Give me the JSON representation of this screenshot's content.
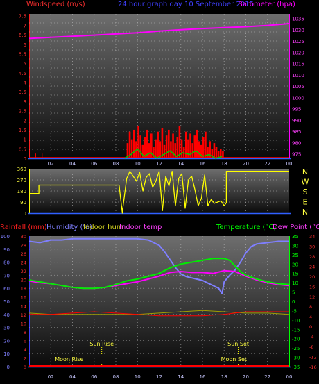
{
  "header": {
    "windspeed_label": "Windspeed (m/s)",
    "title": "24 hour graph day  10 September 2015",
    "barometer_label": "Barometer (hpa)"
  },
  "legend": {
    "rainfall": "Rainfall (mm)",
    "humidity": "Humidity (%)",
    "indoor_hum": "Indoor hum",
    "indoor_temp": "Indoor temp",
    "temperature": "Temperature (°C)",
    "dew_point": "Dew Point (°C)"
  },
  "compass": [
    "N",
    "W",
    "S",
    "E",
    "N"
  ],
  "astro": {
    "sun_rise": "Sun Rise",
    "sun_set": "Sun Set",
    "moon_rise": "Moon Rise",
    "moon_set": "Moon Set"
  },
  "colors": {
    "wind": "#ff0000",
    "gust_bar": "#ff0000",
    "wind_avg": "#00cc00",
    "barometer": "#ff00ff",
    "direction": "#ffff00",
    "humidity": "#7f7fff",
    "temperature": "#00ee00",
    "dew_point": "#ff00ff",
    "indoor_hum": "#a0a000",
    "indoor_temp": "#ff0000",
    "rainfall": "#ff0000",
    "astro": "#ffff00"
  },
  "chart_data": [
    {
      "type": "line",
      "id": "wind_baro",
      "x_ticks": [
        "02",
        "04",
        "06",
        "08",
        "10",
        "12",
        "14",
        "16",
        "18",
        "20",
        "22",
        "00"
      ],
      "xlim": [
        0,
        24
      ],
      "left_axis": {
        "label": "Windspeed (m/s)",
        "ticks": [
          "0",
          "0.5",
          "1",
          "1.5",
          "2",
          "2.5",
          "3",
          "3.5",
          "4",
          "4.5",
          "5",
          "5.5",
          "6",
          "6.5",
          "7",
          "7.5"
        ],
        "ylim": [
          0,
          7.6
        ]
      },
      "right_axis": {
        "label": "Barometer (hpa)",
        "ticks": [
          "975",
          "980",
          "985",
          "990",
          "995",
          "1000",
          "1005",
          "1010",
          "1015",
          "1020",
          "1025",
          "1030",
          "1035"
        ],
        "ylim": [
          973,
          1037
        ]
      },
      "series": [
        {
          "name": "Barometer (hpa)",
          "x": [
            0,
            2,
            4,
            6,
            8,
            10,
            12,
            14,
            16,
            18,
            20,
            22,
            24
          ],
          "y": [
            1026.1,
            1026.6,
            1027.1,
            1027.6,
            1028.1,
            1028.6,
            1029.4,
            1030.0,
            1030.5,
            1030.9,
            1031.3,
            1031.9,
            1032.7
          ]
        }
      ],
      "gust_bars": {
        "x": [
          9.0,
          9.2,
          9.4,
          9.6,
          9.8,
          10.0,
          10.2,
          10.4,
          10.6,
          10.8,
          11.0,
          11.2,
          11.4,
          11.6,
          11.8,
          12.0,
          12.2,
          12.4,
          12.6,
          12.8,
          13.0,
          13.2,
          13.4,
          13.6,
          13.8,
          14.0,
          14.2,
          14.4,
          14.6,
          14.8,
          15.0,
          15.2,
          15.4,
          15.6,
          15.8,
          16.0,
          16.2,
          16.4,
          16.6,
          16.8,
          17.0,
          17.2,
          17.4,
          17.6,
          17.8
        ],
        "y": [
          0.8,
          1.4,
          1.0,
          1.5,
          0.9,
          1.7,
          1.2,
          0.7,
          1.1,
          1.5,
          0.8,
          1.3,
          0.6,
          1.0,
          1.4,
          0.9,
          1.6,
          0.7,
          1.2,
          1.5,
          0.9,
          1.3,
          0.8,
          1.1,
          1.7,
          1.0,
          0.6,
          1.4,
          1.0,
          1.3,
          0.8,
          1.2,
          1.5,
          0.9,
          0.7,
          1.1,
          1.4,
          0.6,
          0.9,
          0.5,
          0.8,
          0.6,
          0.4,
          0.5,
          0.4
        ]
      },
      "wind_avg": {
        "x": [
          8.8,
          9.4,
          10.0,
          10.6,
          11.2,
          11.8,
          12.4,
          13.0,
          13.6,
          14.2,
          14.8,
          15.4,
          16.0,
          16.6,
          17.2,
          17.8
        ],
        "y": [
          0,
          0.2,
          0.5,
          0.1,
          0.3,
          0.0,
          0.2,
          0.4,
          0.1,
          0.3,
          0.2,
          0.4,
          0.1,
          0.2,
          0.0,
          0.1
        ]
      },
      "early_spikes_x": [
        0.6,
        1.2
      ]
    },
    {
      "type": "line",
      "id": "wind_direction",
      "left_axis": {
        "ticks": [
          "0",
          "90",
          "180",
          "270",
          "360"
        ],
        "ylim": [
          0,
          360
        ]
      },
      "right_axis": {
        "ticks": [
          "N",
          "W",
          "S",
          "E",
          "N"
        ]
      },
      "xlim": [
        0,
        24
      ],
      "series": [
        {
          "name": "Wind direction",
          "x": [
            0,
            0.9,
            0.9,
            8.3,
            8.3,
            8.6,
            8.6,
            9.0,
            9.3,
            9.6,
            9.9,
            10.2,
            10.5,
            10.8,
            11.1,
            11.4,
            11.7,
            12.0,
            12.3,
            12.6,
            12.9,
            13.2,
            13.5,
            13.8,
            14.1,
            14.4,
            14.7,
            15.0,
            15.3,
            15.6,
            15.9,
            16.2,
            16.5,
            16.8,
            17.1,
            17.4,
            17.7,
            18.0,
            18.2,
            18.2,
            24
          ],
          "y": [
            160,
            160,
            228,
            228,
            228,
            0,
            10,
            280,
            340,
            300,
            260,
            330,
            180,
            290,
            320,
            210,
            260,
            340,
            20,
            300,
            220,
            340,
            60,
            280,
            320,
            40,
            270,
            300,
            190,
            60,
            120,
            310,
            60,
            110,
            80,
            90,
            100,
            60,
            85,
            340,
            340
          ]
        }
      ]
    },
    {
      "type": "line",
      "id": "temp_hum",
      "xlim": [
        0,
        24
      ],
      "left_axes": {
        "humidity": {
          "ticks": [
            "0",
            "10",
            "20",
            "30",
            "40",
            "50",
            "60",
            "70",
            "80",
            "90",
            "100"
          ],
          "ylim": [
            0,
            100
          ]
        },
        "rainfall": {
          "ticks": [
            "0",
            "2",
            "4",
            "6",
            "8",
            "10",
            "12",
            "14",
            "16",
            "18",
            "20",
            "22",
            "24",
            "26",
            "28",
            "30"
          ],
          "ylim": [
            0,
            30
          ]
        }
      },
      "right_axes": {
        "temperature": {
          "ticks": [
            "-35",
            "-30",
            "-25",
            "-20",
            "-15",
            "-10",
            "-5",
            "0",
            "5",
            "10",
            "15",
            "20",
            "25",
            "30",
            "35"
          ],
          "ylim": [
            -35,
            35
          ]
        },
        "indoor_temp": {
          "ticks": [
            "-16",
            "-12",
            "-8",
            "-4",
            "0",
            "4",
            "8",
            "12",
            "16",
            "20",
            "24",
            "28",
            "30",
            "34"
          ],
          "ylim": [
            -16,
            34
          ]
        }
      },
      "series": [
        {
          "name": "Humidity (%)",
          "x": [
            0,
            1,
            2,
            3,
            4,
            5,
            6,
            7,
            8,
            9,
            10,
            11,
            12,
            12.5,
            13,
            13.5,
            14,
            14.5,
            15,
            15.5,
            16,
            16.5,
            17,
            17.5,
            17.8,
            18,
            18.5,
            19,
            19.5,
            20,
            20.5,
            21,
            22,
            23,
            24
          ],
          "y": [
            96,
            95,
            97,
            97,
            98,
            98,
            98,
            98,
            98,
            98,
            98,
            97,
            93,
            88,
            82,
            76,
            71,
            69,
            68,
            67,
            66,
            64,
            62,
            60,
            56,
            65,
            70,
            74,
            80,
            87,
            92,
            94,
            95,
            96,
            96
          ]
        },
        {
          "name": "Temperature (°C)",
          "x": [
            0,
            1,
            2,
            3,
            4,
            5,
            6,
            7,
            8,
            9,
            10,
            11,
            12,
            13,
            14,
            15,
            16,
            17,
            18,
            18.5,
            19,
            19.5,
            20,
            21,
            22,
            23,
            24
          ],
          "y": [
            11.5,
            10.5,
            9.5,
            8.5,
            7.5,
            7,
            7,
            7.5,
            9,
            11,
            12,
            13.5,
            15,
            18,
            20,
            21,
            22,
            23,
            23,
            22,
            19,
            16,
            14,
            12,
            10.5,
            9.5,
            9
          ]
        },
        {
          "name": "Dew Point (°C)",
          "x": [
            0,
            1,
            2,
            3,
            4,
            5,
            6,
            7,
            8,
            9,
            10,
            11,
            12,
            13,
            14,
            15,
            16,
            17,
            18,
            19,
            20,
            21,
            22,
            23,
            24
          ],
          "y": [
            11,
            10,
            9.5,
            8.5,
            7.5,
            7,
            7,
            7.5,
            8.5,
            9.5,
            10.5,
            12,
            13.5,
            15.5,
            16,
            15.5,
            15.5,
            15,
            16.5,
            16,
            13.5,
            11.5,
            10,
            9,
            8.5
          ]
        },
        {
          "name": "Indoor hum",
          "x": [
            0,
            2,
            4,
            6,
            8,
            10,
            12,
            14,
            16,
            18,
            20,
            22,
            24
          ],
          "y": [
            41,
            40,
            40,
            40,
            40,
            40,
            41,
            42,
            43,
            42,
            41,
            41,
            40
          ]
        },
        {
          "name": "Indoor temp",
          "x": [
            0,
            2,
            4,
            6,
            8,
            10,
            12,
            14,
            16,
            18,
            20,
            22,
            24
          ],
          "y": [
            4,
            4,
            4.5,
            5,
            4.5,
            4,
            3.5,
            3.5,
            3.5,
            4,
            5,
            5,
            5
          ]
        },
        {
          "name": "Rainfall (mm)",
          "x": [
            0,
            24
          ],
          "y": [
            0,
            0
          ]
        }
      ],
      "astro_x": {
        "sun_rise": 6.7,
        "sun_set": 19.3,
        "moon_rise": 3.7,
        "moon_set": 18.9
      }
    }
  ]
}
